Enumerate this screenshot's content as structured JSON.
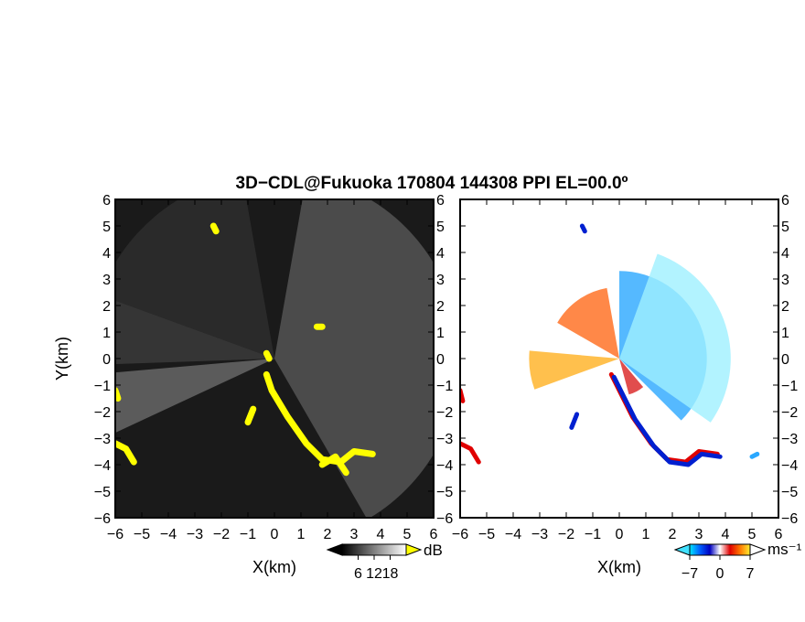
{
  "figure": {
    "title": "3D−CDL@Fukuoka 170804 144308 PPI EL=00.0º"
  },
  "chart_data": [
    {
      "type": "heatmap",
      "name": "reflectivity-ppi",
      "xlabel": "X(km)",
      "ylabel": "Y(km)",
      "xlim": [
        -6,
        6
      ],
      "ylim": [
        -6,
        6
      ],
      "x_ticks": [
        "−6",
        "−5",
        "−4",
        "−3",
        "−2",
        "−1",
        "0",
        "1",
        "2",
        "3",
        "4",
        "5",
        "6"
      ],
      "y_ticks": [
        "6",
        "5",
        "4",
        "3",
        "2",
        "1",
        "0",
        "−1",
        "−2",
        "−3",
        "−4",
        "−5",
        "−6"
      ],
      "colorbar": {
        "unit": "dB",
        "ticks": [
          "6",
          "12",
          "18"
        ],
        "range": [
          0,
          24
        ],
        "colors": [
          "#000000",
          "#ffffff"
        ]
      },
      "background": "#1a1a1a",
      "sectors": [
        {
          "from_deg": 185,
          "to_deg": 205,
          "level": 0.6
        },
        {
          "from_deg": 160,
          "to_deg": 182,
          "level": 0.25
        },
        {
          "from_deg": 100,
          "to_deg": 160,
          "level": 0.15
        },
        {
          "from_deg": -60,
          "to_deg": 80,
          "level": 0.45
        }
      ],
      "highlight_color": "#ffff00",
      "highlight_paths": [
        [
          [
            -0.3,
            -0.6
          ],
          [
            -0.1,
            -1.2
          ],
          [
            0.5,
            -2.2
          ],
          [
            1.2,
            -3.2
          ],
          [
            1.8,
            -3.8
          ],
          [
            2.5,
            -3.9
          ],
          [
            3.0,
            -3.5
          ],
          [
            3.7,
            -3.6
          ]
        ],
        [
          [
            1.8,
            -4.0
          ],
          [
            2.3,
            -3.7
          ],
          [
            2.7,
            -4.3
          ]
        ],
        [
          [
            -6.0,
            -3.2
          ],
          [
            -5.6,
            -3.4
          ],
          [
            -5.3,
            -3.9
          ]
        ],
        [
          [
            -6.0,
            -1.2
          ],
          [
            -5.9,
            -1.5
          ]
        ],
        [
          [
            -0.8,
            -1.9
          ],
          [
            -1.0,
            -2.4
          ]
        ],
        [
          [
            -0.3,
            0.2
          ],
          [
            -0.2,
            0.0
          ]
        ],
        [
          [
            1.6,
            1.2
          ],
          [
            1.8,
            1.2
          ]
        ],
        [
          [
            -2.3,
            5.0
          ],
          [
            -2.2,
            4.8
          ]
        ]
      ]
    },
    {
      "type": "heatmap",
      "name": "doppler-velocity-ppi",
      "xlabel": "X(km)",
      "xlim": [
        -6,
        6
      ],
      "ylim": [
        -6,
        6
      ],
      "x_ticks": [
        "−6",
        "−5",
        "−4",
        "−3",
        "−2",
        "−1",
        "0",
        "1",
        "2",
        "3",
        "4",
        "5",
        "6"
      ],
      "y_ticks": [
        "6",
        "5",
        "4",
        "3",
        "2",
        "1",
        "0",
        "−1",
        "−2",
        "−3",
        "−4",
        "−5",
        "−6"
      ],
      "colorbar": {
        "unit": "ms⁻¹",
        "ticks": [
          "−7",
          "0",
          "7"
        ],
        "range": [
          -7,
          7
        ],
        "colors": [
          "#00e5ff",
          "#0060ff",
          "#0000c0",
          "#ffffff",
          "#e00000",
          "#ff7700",
          "#ffee33"
        ]
      },
      "background": "#ffffff",
      "regions": [
        {
          "label": "receding-east",
          "color": "#2aa8ff",
          "from_deg": -45,
          "to_deg": 90,
          "radius_km": 3.3
        },
        {
          "label": "receding-outer",
          "color": "#9ff0ff",
          "from_deg": -35,
          "to_deg": 70,
          "radius_km": 4.2
        },
        {
          "label": "approaching-northwest",
          "color": "#ff6a1a",
          "from_deg": 100,
          "to_deg": 150,
          "radius_km": 2.7
        },
        {
          "label": "approaching-west",
          "color": "#ffb020",
          "from_deg": 175,
          "to_deg": 200,
          "radius_km": 3.4
        },
        {
          "label": "near-zero-south",
          "color": "#d92020",
          "from_deg": -75,
          "to_deg": -50,
          "radius_km": 1.4
        }
      ],
      "edge_paths": [
        {
          "color": "#e00000",
          "points": [
            [
              -0.3,
              -0.6
            ],
            [
              0.5,
              -2.2
            ],
            [
              1.2,
              -3.2
            ],
            [
              1.8,
              -3.8
            ],
            [
              2.5,
              -3.9
            ],
            [
              3.0,
              -3.5
            ],
            [
              3.7,
              -3.6
            ]
          ]
        },
        {
          "color": "#0020d0",
          "points": [
            [
              -0.2,
              -0.7
            ],
            [
              0.6,
              -2.3
            ],
            [
              1.3,
              -3.3
            ],
            [
              1.9,
              -3.9
            ],
            [
              2.6,
              -4.0
            ],
            [
              3.1,
              -3.6
            ],
            [
              3.8,
              -3.7
            ]
          ]
        },
        {
          "color": "#e00000",
          "points": [
            [
              -6.0,
              -3.2
            ],
            [
              -5.6,
              -3.4
            ],
            [
              -5.3,
              -3.9
            ]
          ]
        },
        {
          "color": "#e00000",
          "points": [
            [
              -6.0,
              -1.2
            ],
            [
              -5.9,
              -1.6
            ]
          ]
        },
        {
          "color": "#0020d0",
          "points": [
            [
              -1.6,
              -2.1
            ],
            [
              -1.8,
              -2.6
            ]
          ]
        },
        {
          "color": "#0020d0",
          "points": [
            [
              -1.4,
              5.0
            ],
            [
              -1.3,
              4.8
            ]
          ]
        },
        {
          "color": "#2aa8ff",
          "points": [
            [
              5.0,
              -3.7
            ],
            [
              5.2,
              -3.6
            ]
          ]
        }
      ]
    }
  ]
}
